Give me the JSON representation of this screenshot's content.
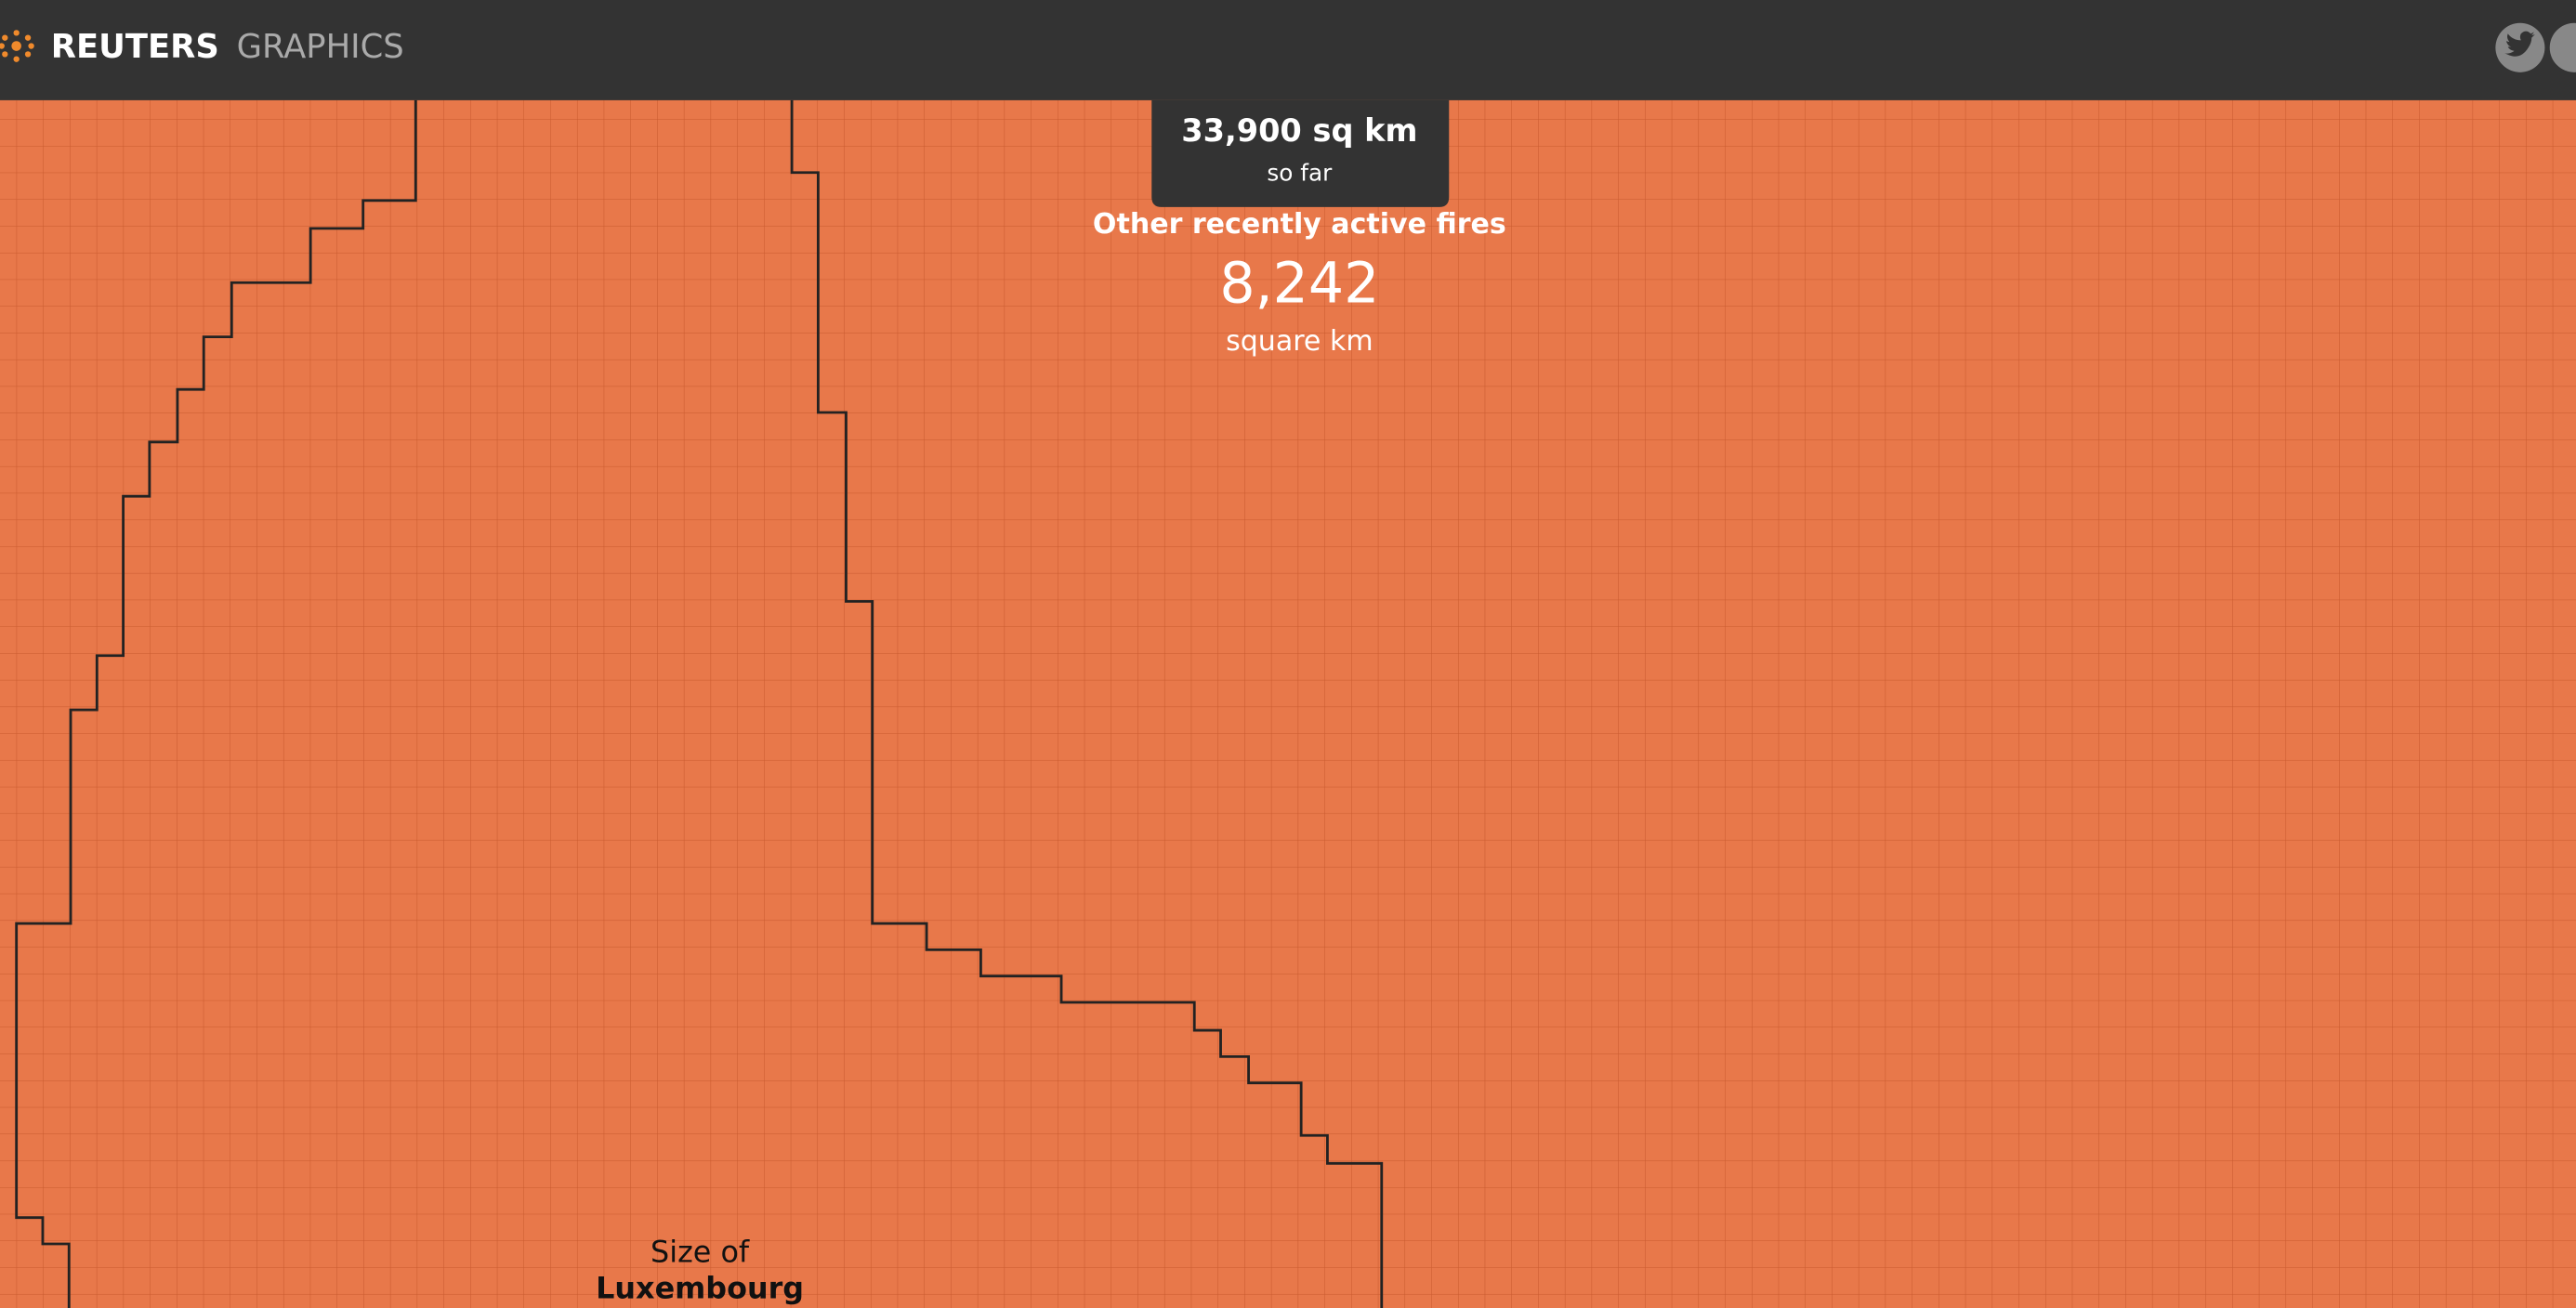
{
  "header": {
    "brand": "REUTERS",
    "section": "GRAPHICS"
  },
  "tooltip": {
    "title": "33,900 sq km",
    "subtitle": "so far"
  },
  "fires": {
    "label": "Other recently active fires",
    "value": "8,242",
    "unit": "square km"
  },
  "reference": {
    "prefix": "Size of",
    "name": "Luxembourg"
  }
}
